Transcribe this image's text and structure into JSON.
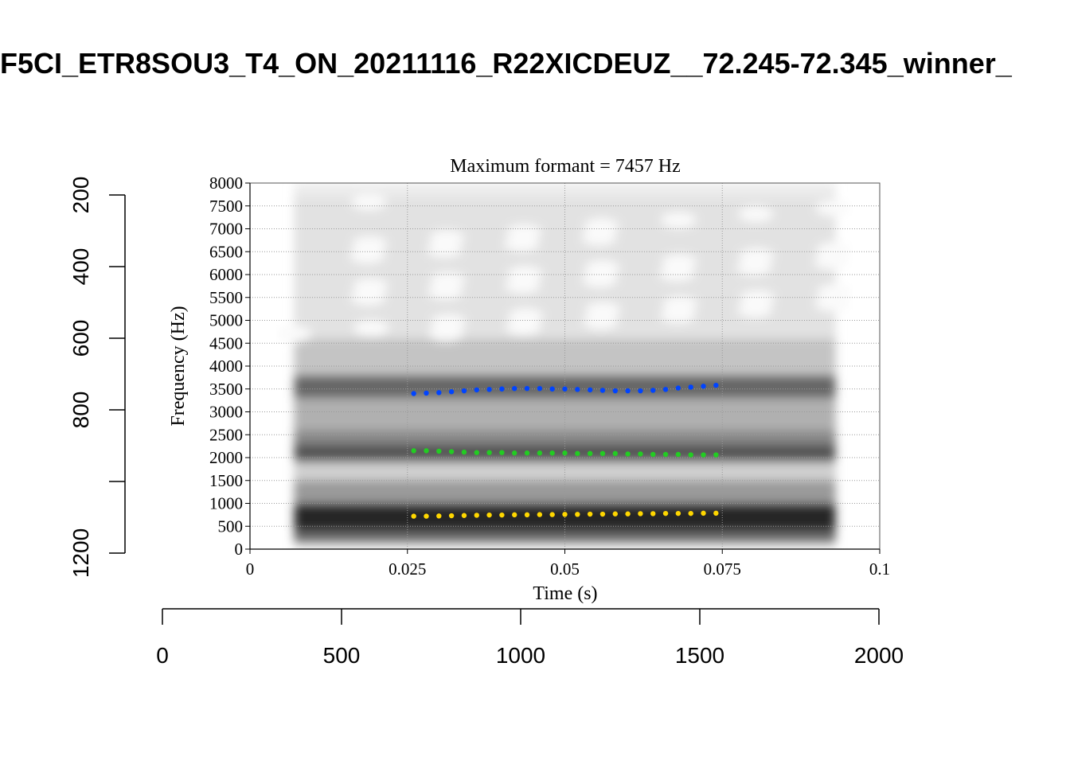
{
  "title": "F5CI_ETR8SOU3_T4_ON_20211116_R22XICDEUZ__72.245-72.345_winner_",
  "chart_data": {
    "type": "scatter",
    "subtitle": "Maximum formant = 7457 Hz",
    "xlabel": "Time (s)",
    "ylabel": "Frequency (Hz)",
    "xlim": [
      0,
      0.1
    ],
    "ylim": [
      0,
      8000
    ],
    "xticks": [
      "0",
      "0.025",
      "0.05",
      "0.075",
      "0.1"
    ],
    "yticks": [
      "0",
      "500",
      "1000",
      "1500",
      "2000",
      "2500",
      "3000",
      "3500",
      "4000",
      "4500",
      "5000",
      "5500",
      "6000",
      "6500",
      "7000",
      "7500",
      "8000"
    ],
    "grid": true,
    "background": "grayscale spectrogram",
    "outer_axes": {
      "x_ticks": [
        "0",
        "500",
        "1000",
        "1500",
        "2000"
      ],
      "x_range": [
        0,
        2000
      ],
      "y_ticks": [
        "200",
        "400",
        "600",
        "800",
        "1200"
      ],
      "y_range": [
        200,
        1200
      ],
      "y_reversed": true
    },
    "x": [
      0.026,
      0.028,
      0.03,
      0.032,
      0.034,
      0.036,
      0.038,
      0.04,
      0.042,
      0.044,
      0.046,
      0.048,
      0.05,
      0.052,
      0.054,
      0.056,
      0.058,
      0.06,
      0.062,
      0.064,
      0.066,
      0.068,
      0.07,
      0.072,
      0.074
    ],
    "series": [
      {
        "color": "#0044ff",
        "values": [
          3400,
          3410,
          3420,
          3440,
          3460,
          3480,
          3490,
          3500,
          3510,
          3510,
          3510,
          3500,
          3500,
          3490,
          3480,
          3470,
          3460,
          3460,
          3460,
          3470,
          3490,
          3520,
          3540,
          3560,
          3580
        ]
      },
      {
        "color": "#22cc22",
        "values": [
          2150,
          2150,
          2140,
          2130,
          2120,
          2110,
          2110,
          2110,
          2100,
          2100,
          2100,
          2100,
          2100,
          2090,
          2090,
          2090,
          2090,
          2080,
          2080,
          2070,
          2070,
          2070,
          2060,
          2060,
          2060
        ]
      },
      {
        "color": "#ffd700",
        "values": [
          720,
          720,
          725,
          730,
          735,
          740,
          745,
          745,
          750,
          750,
          755,
          755,
          760,
          760,
          765,
          765,
          770,
          770,
          775,
          775,
          780,
          780,
          780,
          785,
          785
        ]
      }
    ]
  }
}
